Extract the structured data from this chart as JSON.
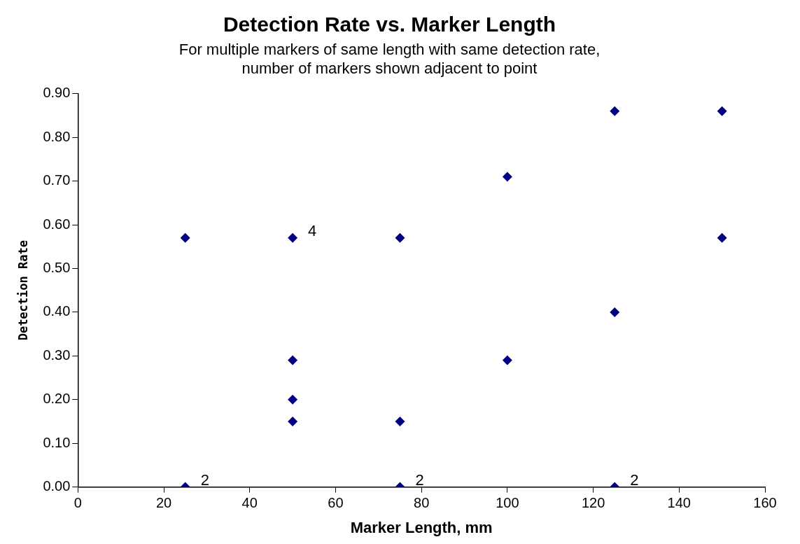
{
  "chart_data": {
    "type": "scatter",
    "title": "Detection Rate vs. Marker Length",
    "subtitle": "For multiple markers of same length with same detection rate,\nnumber of markers shown adjacent to point",
    "xlabel": "Marker Length, mm",
    "ylabel": "Detection Rate",
    "series": [
      {
        "color": "#000080",
        "x": [
          25,
          25,
          50,
          50,
          50,
          50,
          75,
          75,
          75,
          100,
          100,
          125,
          125,
          125,
          150,
          150
        ],
        "values": [
          0.57,
          0,
          0.57,
          0.29,
          0.2,
          0.15,
          0.57,
          0.15,
          0,
          0.71,
          0.29,
          0.86,
          0.4,
          0,
          0.86,
          0.57
        ]
      }
    ],
    "annotations": [
      {
        "text": "2",
        "x": 25,
        "y": 0
      },
      {
        "text": "4",
        "x": 50,
        "y": 0.57
      },
      {
        "text": "2",
        "x": 75,
        "y": 0
      },
      {
        "text": "2",
        "x": 125,
        "y": 0
      }
    ],
    "xlim": [
      0,
      160
    ],
    "xticks": [
      0,
      20,
      40,
      60,
      80,
      100,
      120,
      140,
      160
    ],
    "ylim": [
      0,
      0.9
    ],
    "yticks": [
      {
        "value": 0,
        "label": "0.00"
      },
      {
        "value": 0.1,
        "label": "0.10"
      },
      {
        "value": 0.2,
        "label": "0.20"
      },
      {
        "value": 0.3,
        "label": "0.30"
      },
      {
        "value": 0.4,
        "label": "0.40"
      },
      {
        "value": 0.5,
        "label": "0.50"
      },
      {
        "value": 0.6,
        "label": "0.60"
      },
      {
        "value": 0.7,
        "label": "0.70"
      },
      {
        "value": 0.8,
        "label": "0.80"
      },
      {
        "value": 0.9,
        "label": "0.90"
      }
    ],
    "grid": false,
    "legend": false,
    "marker": "diamond"
  }
}
